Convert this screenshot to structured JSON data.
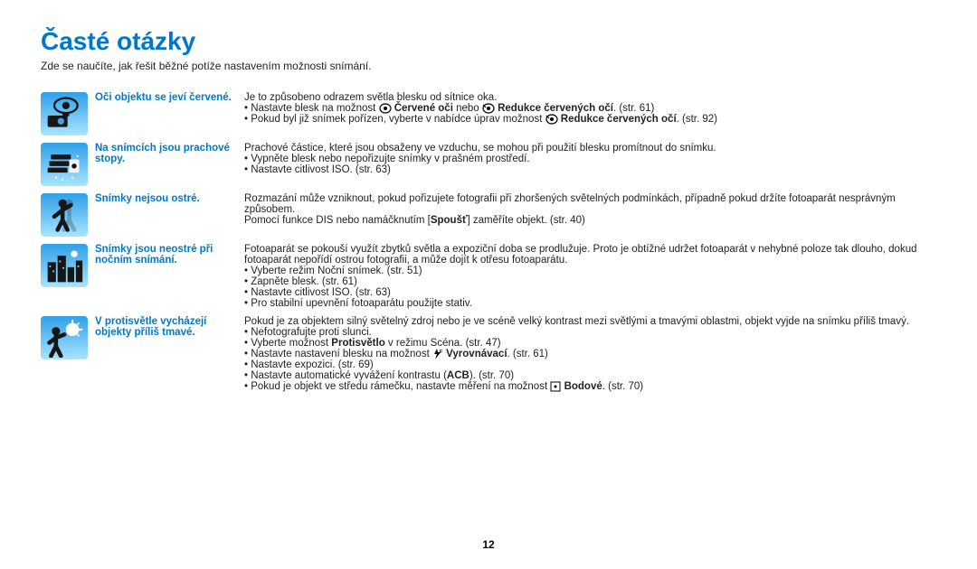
{
  "colors": {
    "title": "#0078c8",
    "label": "#0078c8",
    "text": "#222222",
    "background": "#ffffff",
    "icon_bg_top": "#2fa0e8",
    "icon_bg_bottom": "#a8e4ff"
  },
  "title": "Časté otázky",
  "intro": "Zde se naučíte, jak řešit běžné potíže nastavením možnosti snímání.",
  "page_number": "12",
  "rows": [
    {
      "icon": "eye-camera",
      "label": "Oči objektu se jeví červené.",
      "lead": "Je to způsobeno odrazem světla blesku od sítnice oka.",
      "bullets": [
        {
          "pre": "Nastavte blesk na možnost ",
          "icon": "redeye-a",
          "bold1": "Červené oči",
          "mid": " nebo ",
          "icon2": "redeye-b",
          "bold2": "Redukce červených očí",
          "post": ". (str. 61)"
        },
        {
          "pre": "Pokud byl již snímek pořízen, vyberte v nabídce úprav možnost ",
          "icon": "redeye-b",
          "bold1": "Redukce červených očí",
          "post": ". (str. 92)"
        }
      ]
    },
    {
      "icon": "dust",
      "label": "Na snímcích jsou prachové stopy.",
      "lead": "Prachové částice, které jsou obsaženy ve vzduchu, se mohou při použití blesku promítnout do snímku.",
      "bullets": [
        {
          "pre": "Vypněte blesk nebo nepořizujte snímky v prašném prostředí."
        },
        {
          "pre": "Nastavte citlivost ISO. (str. 63)"
        }
      ]
    },
    {
      "icon": "blur-person",
      "label": "Snímky nejsou ostré.",
      "lead": "Rozmazání může vzniknout, pokud pořizujete fotografii při zhoršených světelných podmínkách, případně pokud držíte fotoaparát nesprávným způsobem.",
      "tail_plain_pre": "Pomocí funkce DIS nebo namáčknutím [",
      "tail_bold": "Spoušť",
      "tail_plain_post": "] zaměříte objekt. (str. 40)"
    },
    {
      "icon": "night-city",
      "label": "Snímky jsou neostré při nočním snímání.",
      "lead": "Fotoaparát se pokouší využít zbytků světla a expoziční doba se prodlužuje. Proto je obtížné udržet fotoaparát v nehybné poloze tak dlouho, dokud fotoaparát nepořídí ostrou fotografii, a může dojít k otřesu fotoaparátu.",
      "bullets": [
        {
          "pre": "Vyberte režim Noční snímek. (str. 51)"
        },
        {
          "pre": "Zapněte blesk. (str. 61)"
        },
        {
          "pre": "Nastavte citlivost ISO. (str. 63)"
        },
        {
          "pre": "Pro stabilní upevnění fotoaparátu použijte stativ."
        }
      ]
    },
    {
      "icon": "backlight",
      "label": "V protisvětle vycházejí objekty příliš tmavé.",
      "lead": "Pokud je za objektem silný světelný zdroj nebo je ve scéně velký kontrast mezi světlými a tmavými oblastmi, objekt vyjde na snímku příliš tmavý.",
      "bullets": [
        {
          "pre": "Nefotografujte proti slunci."
        },
        {
          "pre": "Vyberte možnost ",
          "bold1": "Protisvětlo",
          "post": " v režimu Scéna. (str. 47)"
        },
        {
          "pre": "Nastavte nastavení blesku na možnost ",
          "icon": "flash-f",
          "bold1": "Vyrovnávací",
          "post": ". (str. 61)"
        },
        {
          "pre": "Nastavte expozici. (str. 69)"
        },
        {
          "pre": "Nastavte automatické vyvážení kontrastu (",
          "bold1": "ACB",
          "post": "). (str. 70)"
        },
        {
          "pre": "Pokud je objekt ve středu rámečku, nastavte měření na možnost ",
          "icon": "spot",
          "bold1": "Bodové",
          "post": ". (str. 70)"
        }
      ]
    }
  ]
}
